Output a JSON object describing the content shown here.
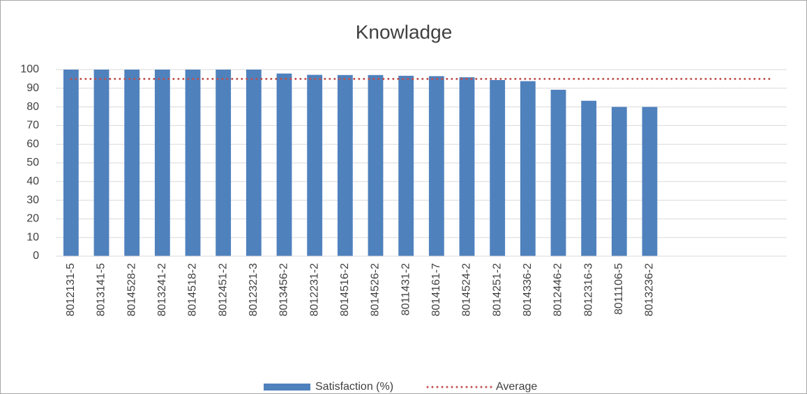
{
  "chart_data": {
    "type": "bar",
    "title": "Knowladge",
    "categories": [
      "8012131-5",
      "8013141-5",
      "8014528-2",
      "8013241-2",
      "8014518-2",
      "8012451-2",
      "8012321-3",
      "8013456-2",
      "8012231-2",
      "8014516-2",
      "8014526-2",
      "8011431-2",
      "8014161-7",
      "8014524-2",
      "8014251-2",
      "8014336-2",
      "8012446-2",
      "8012316-3",
      "8011106-5",
      "8013236-2",
      null,
      null,
      null,
      null
    ],
    "series": [
      {
        "name": "Satisfaction (%)",
        "color": "#4f81bd",
        "type": "bar",
        "values": [
          100,
          100,
          100,
          100,
          100,
          100,
          100,
          97.9,
          97.2,
          97.1,
          97.1,
          96.7,
          96.5,
          95.9,
          94.4,
          93.8,
          89.2,
          83.3,
          80,
          80,
          null,
          null,
          null,
          null
        ]
      },
      {
        "name": "Average",
        "color": "#c0504d",
        "type": "line",
        "values": [
          95,
          95,
          95,
          95,
          95,
          95,
          95,
          95,
          95,
          95,
          95,
          95,
          95,
          95,
          95,
          95,
          95,
          95,
          95,
          95,
          95,
          95,
          95,
          95
        ]
      }
    ],
    "ylim": [
      0,
      100
    ],
    "yticks": [
      0,
      10,
      20,
      30,
      40,
      50,
      60,
      70,
      80,
      90,
      100
    ],
    "grid": true,
    "legend": "bottom"
  }
}
